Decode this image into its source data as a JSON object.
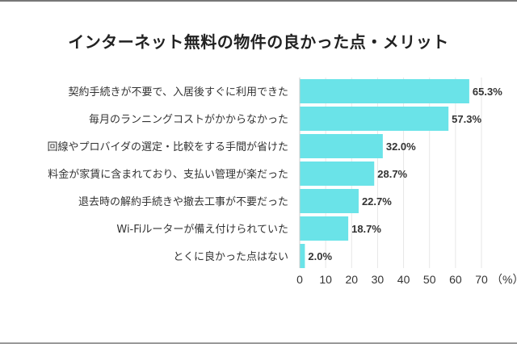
{
  "chart_data": {
    "type": "bar",
    "orientation": "horizontal",
    "title": "インターネット無料の物件の良かった点・メリット",
    "categories": [
      "契約手続きが不要で、入居後すぐに利用できた",
      "毎月のランニングコストがかからなかった",
      "回線やプロバイダの選定・比較をする手間が省けた",
      "料金が家賃に含まれており、支払い管理が楽だった",
      "退去時の解約手続きや撤去工事が不要だった",
      "Wi-Fiルーターが備え付けられていた",
      "とくに良かった点はない"
    ],
    "values": [
      65.3,
      57.3,
      32.0,
      28.7,
      22.7,
      18.7,
      2.0
    ],
    "value_labels": [
      "65.3%",
      "57.3%",
      "32.0%",
      "28.7%",
      "22.7%",
      "18.7%",
      "2.0%"
    ],
    "xlim": [
      0,
      70
    ],
    "xticks": [
      "0",
      "10",
      "20",
      "30",
      "40",
      "50",
      "60",
      "70"
    ],
    "xunit": "（%）",
    "grid": true,
    "bar_color": "#6ae3e8"
  }
}
